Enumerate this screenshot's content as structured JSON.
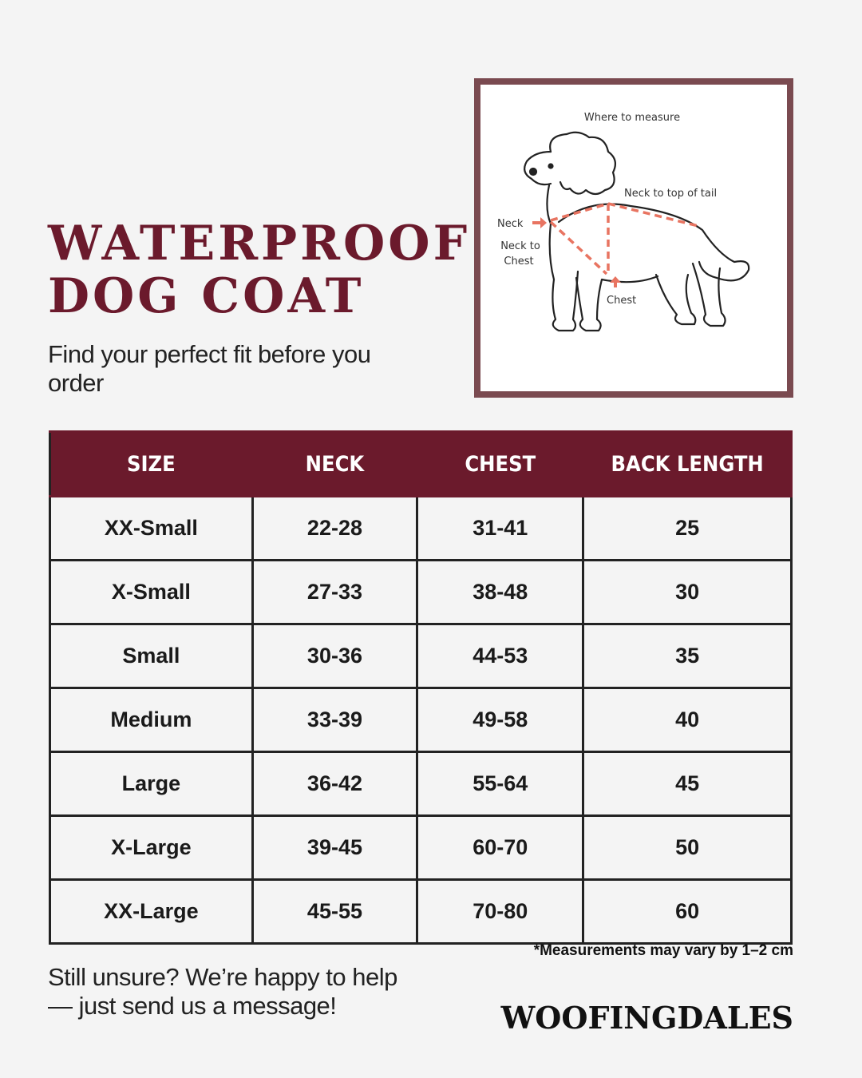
{
  "header": {
    "title": [
      "WATERPROOF",
      "DOG COAT"
    ],
    "subtitle": "Find your perfect fit before you order"
  },
  "diagram": {
    "title": "Where to measure",
    "labels": {
      "neck_to_tail": "Neck to top of tail",
      "neck": "Neck",
      "neck_to_chest": [
        "Neck to",
        "Chest"
      ],
      "chest": "Chest"
    }
  },
  "table": {
    "headers": [
      "SIZE",
      "NECK",
      "CHEST",
      "BACK LENGTH"
    ],
    "rows": [
      [
        "XX-Small",
        "22-28",
        "31-41",
        25
      ],
      [
        "X-Small",
        "27-33",
        "38-48",
        30
      ],
      [
        "Small",
        "30-36",
        "44-53",
        35
      ],
      [
        "Medium",
        "33-39",
        "49-58",
        40
      ],
      [
        "Large",
        "36-42",
        "55-64",
        45
      ],
      [
        "X-Large",
        "39-45",
        "60-70",
        50
      ],
      [
        "XX-Large",
        "45-55",
        "70-80",
        60
      ]
    ]
  },
  "footnote": "*Measurements may vary by 1–2 cm",
  "footer": {
    "help": "Still unsure? We’re happy to help — just send us a message!",
    "brand": "WOOFINGDALES"
  }
}
